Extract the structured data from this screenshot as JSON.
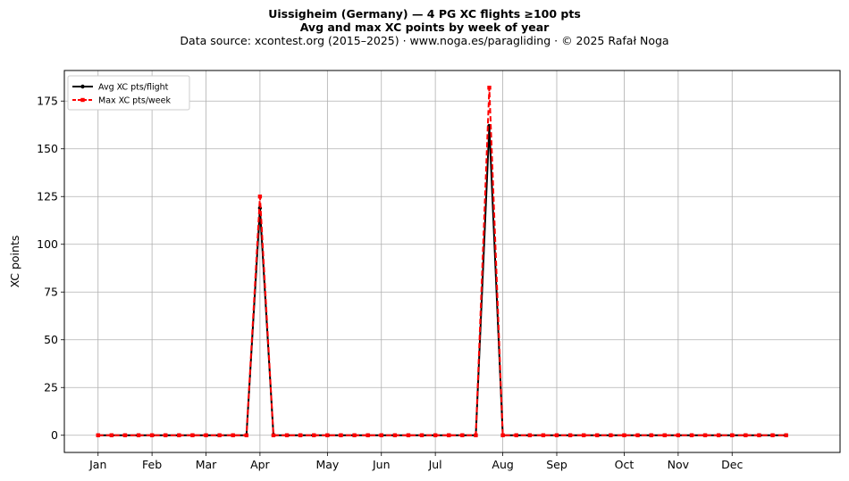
{
  "chart_data": {
    "type": "line",
    "title": "Uissigheim (Germany)  —  4 PG XC flights ≥100 pts",
    "title_line2": "Avg and max XC points by week of year",
    "subtitle": "Data source: xcontest.org (2015–2025)  ·  www.noga.es/paragliding  ·  © 2025 Rafał Noga",
    "xlabel": "",
    "ylabel": "XC points",
    "xlim": [
      -2.5,
      55
    ],
    "ylim": [
      -9,
      191
    ],
    "yticks": [
      0,
      25,
      50,
      75,
      100,
      125,
      150,
      175
    ],
    "xticks": [
      {
        "label": "Jan",
        "week": 0
      },
      {
        "label": "Feb",
        "week": 4
      },
      {
        "label": "Mar",
        "week": 8
      },
      {
        "label": "Apr",
        "week": 12
      },
      {
        "label": "May",
        "week": 17
      },
      {
        "label": "Jun",
        "week": 21
      },
      {
        "label": "Jul",
        "week": 25
      },
      {
        "label": "Aug",
        "week": 30
      },
      {
        "label": "Sep",
        "week": 34
      },
      {
        "label": "Oct",
        "week": 39
      },
      {
        "label": "Nov",
        "week": 43
      },
      {
        "label": "Dec",
        "week": 47
      }
    ],
    "grid": true,
    "legend_position": "top-left",
    "x": [
      0,
      1,
      2,
      3,
      4,
      5,
      6,
      7,
      8,
      9,
      10,
      11,
      12,
      13,
      14,
      15,
      16,
      17,
      18,
      19,
      20,
      21,
      22,
      23,
      24,
      25,
      26,
      27,
      28,
      29,
      30,
      31,
      32,
      33,
      34,
      35,
      36,
      37,
      38,
      39,
      40,
      41,
      42,
      43,
      44,
      45,
      46,
      47,
      48,
      49,
      50,
      51
    ],
    "series": [
      {
        "name": "Avg XC pts/flight",
        "color": "#000000",
        "style": "solid-circle",
        "values": [
          0,
          0,
          0,
          0,
          0,
          0,
          0,
          0,
          0,
          0,
          0,
          0,
          119,
          0,
          0,
          0,
          0,
          0,
          0,
          0,
          0,
          0,
          0,
          0,
          0,
          0,
          0,
          0,
          0,
          162,
          0,
          0,
          0,
          0,
          0,
          0,
          0,
          0,
          0,
          0,
          0,
          0,
          0,
          0,
          0,
          0,
          0,
          0,
          0,
          0,
          0,
          0
        ]
      },
      {
        "name": "Max XC pts/week",
        "color": "#ff0000",
        "style": "dashed-square",
        "values": [
          0,
          0,
          0,
          0,
          0,
          0,
          0,
          0,
          0,
          0,
          0,
          0,
          125,
          0,
          0,
          0,
          0,
          0,
          0,
          0,
          0,
          0,
          0,
          0,
          0,
          0,
          0,
          0,
          0,
          182,
          0,
          0,
          0,
          0,
          0,
          0,
          0,
          0,
          0,
          0,
          0,
          0,
          0,
          0,
          0,
          0,
          0,
          0,
          0,
          0,
          0,
          0
        ]
      }
    ]
  }
}
